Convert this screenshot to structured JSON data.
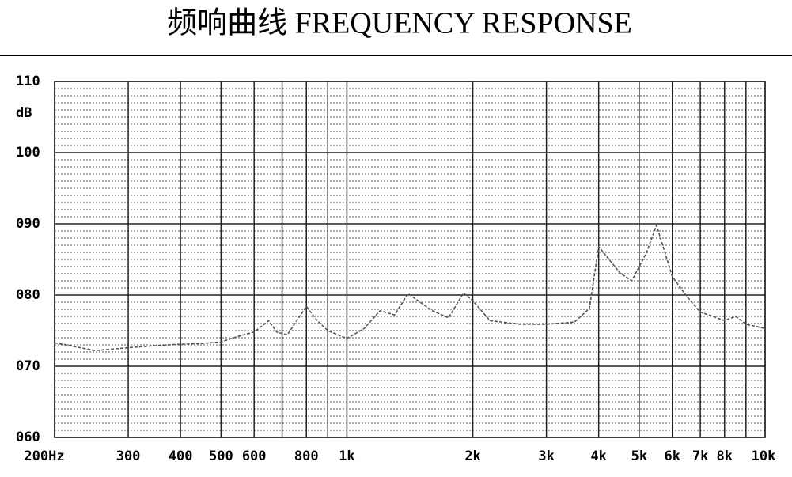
{
  "chart_data": {
    "type": "line",
    "title": "频响曲线  FREQUENCY RESPONSE",
    "y_label": "dB",
    "x_scale": "log",
    "xlim": [
      200,
      10000
    ],
    "ylim": [
      60,
      110
    ],
    "xticks": [
      {
        "value": 200,
        "label": "200Hz"
      },
      300,
      400,
      500,
      600,
      800,
      {
        "value": 1000,
        "label": "1k"
      },
      {
        "value": 2000,
        "label": "2k"
      },
      {
        "value": 3000,
        "label": "3k"
      },
      {
        "value": 4000,
        "label": "4k"
      },
      {
        "value": 5000,
        "label": "5k"
      },
      {
        "value": 6000,
        "label": "6k"
      },
      {
        "value": 7000,
        "label": "7k"
      },
      {
        "value": 8000,
        "label": "8k"
      },
      {
        "value": 10000,
        "label": "10k"
      }
    ],
    "xgrid_unlabeled": [
      700,
      900,
      9000
    ],
    "yticks": [
      {
        "value": 60,
        "label": "060"
      },
      {
        "value": 70,
        "label": "070"
      },
      {
        "value": 80,
        "label": "080"
      },
      {
        "value": 90,
        "label": "090"
      },
      {
        "value": 100,
        "label": "100"
      },
      {
        "value": 110,
        "label": "110"
      }
    ],
    "grid": true,
    "color": "#555555",
    "x": [
      200,
      250,
      300,
      350,
      400,
      450,
      500,
      550,
      600,
      650,
      680,
      720,
      800,
      850,
      900,
      1000,
      1100,
      1200,
      1300,
      1400,
      1600,
      1750,
      1900,
      2000,
      2200,
      2600,
      3000,
      3500,
      3800,
      4000,
      4500,
      4800,
      5200,
      5500,
      6000,
      6500,
      7000,
      7500,
      8000,
      8500,
      9000,
      10000
    ],
    "values": [
      73.3,
      72.2,
      72.6,
      72.9,
      73.1,
      73.2,
      73.4,
      74.2,
      74.8,
      76.4,
      74.8,
      74.4,
      78.4,
      76.4,
      75.0,
      73.9,
      75.3,
      77.8,
      77.2,
      80.2,
      77.8,
      76.8,
      80.3,
      79.2,
      76.4,
      75.9,
      75.9,
      76.2,
      78.1,
      86.8,
      83.1,
      82.0,
      85.9,
      89.8,
      82.6,
      79.8,
      77.6,
      77.0,
      76.4,
      77.0,
      75.9,
      75.3
    ]
  }
}
